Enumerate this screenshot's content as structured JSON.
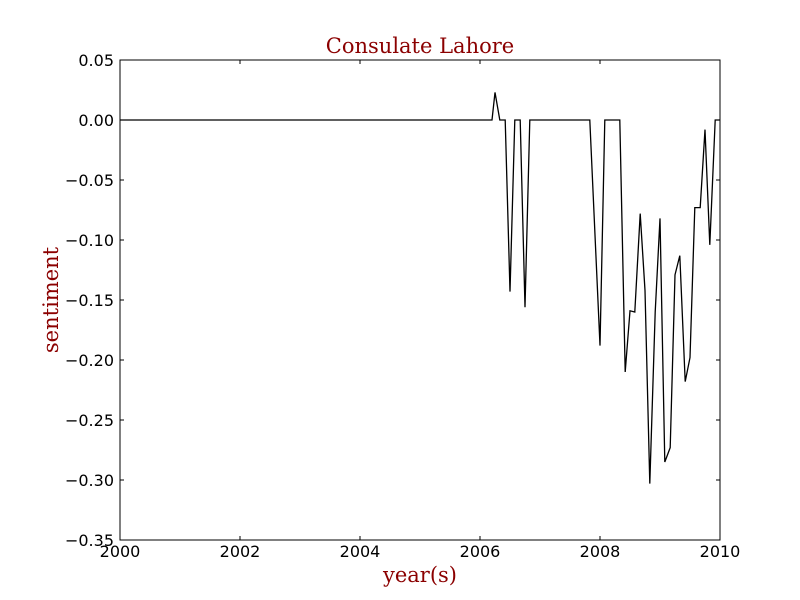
{
  "chart_data": {
    "type": "line",
    "title": "Consulate Lahore",
    "xlabel": "year(s)",
    "ylabel": "sentiment",
    "xlim": [
      2000,
      2010
    ],
    "ylim": [
      -0.35,
      0.05
    ],
    "x_ticks": [
      2000,
      2002,
      2004,
      2006,
      2008,
      2010
    ],
    "x_tick_labels": [
      "2000",
      "2002",
      "2004",
      "2006",
      "2008",
      "2010"
    ],
    "y_ticks": [
      0.05,
      0.0,
      -0.05,
      -0.1,
      -0.15,
      -0.2,
      -0.25,
      -0.3,
      -0.35
    ],
    "y_tick_labels": [
      "0.05",
      "0.00",
      "−0.05",
      "−0.10",
      "−0.15",
      "−0.20",
      "−0.25",
      "−0.30",
      "−0.35"
    ],
    "grid": false,
    "series": [
      {
        "x": [
          2000.0,
          2006.2,
          2006.25,
          2006.33,
          2006.42,
          2006.5,
          2006.58,
          2006.67,
          2006.75,
          2006.83,
          2006.92,
          2007.0,
          2007.83,
          2008.0,
          2008.08,
          2008.33,
          2008.42,
          2008.5,
          2008.58,
          2008.67,
          2008.75,
          2008.83,
          2008.92,
          2009.0,
          2009.08,
          2009.17,
          2009.25,
          2009.33,
          2009.42,
          2009.5,
          2009.58,
          2009.67,
          2009.75,
          2009.83,
          2009.92,
          2010.0
        ],
        "y": [
          0.0,
          0.0,
          0.023,
          0.0,
          0.0,
          -0.143,
          0.0,
          0.0,
          -0.156,
          0.0,
          0.0,
          0.0,
          0.0,
          -0.188,
          0.0,
          0.0,
          -0.21,
          -0.159,
          -0.16,
          -0.078,
          -0.142,
          -0.303,
          -0.16,
          -0.082,
          -0.285,
          -0.273,
          -0.129,
          -0.113,
          -0.218,
          -0.198,
          -0.073,
          -0.073,
          -0.008,
          -0.104,
          0.0,
          0.0
        ],
        "color": "#000000"
      }
    ]
  },
  "colors": {
    "title": "#8b0000",
    "axis_labels": "#8b0000",
    "line": "#000000",
    "frame": "#000000"
  }
}
